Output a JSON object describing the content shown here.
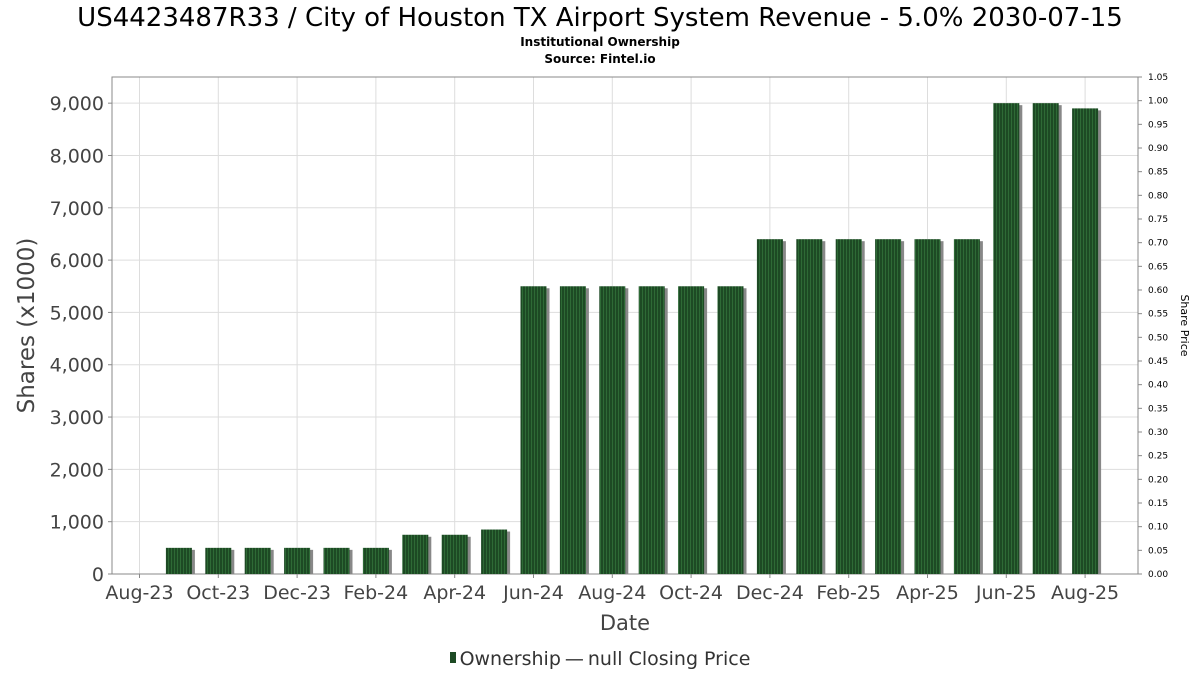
{
  "header": {
    "title": "US4423487R33 / City of Houston TX Airport System Revenue - 5.0% 2030-07-15",
    "subtitle_1": "Institutional Ownership",
    "subtitle_2": "Source: Fintel.io"
  },
  "legend": {
    "ownership_label": "Ownership",
    "separator": "—",
    "price_label": "null Closing Price"
  },
  "chart_data": {
    "type": "bar",
    "title": "US4423487R33 / City of Houston TX Airport System Revenue - 5.0% 2030-07-15",
    "xlabel": "Date",
    "ylabel": "Shares (x1000)",
    "y2label": "Share Price",
    "ylim": [
      0,
      9500
    ],
    "y2lim": [
      0,
      1.05
    ],
    "grid": true,
    "legend_position": "bottom",
    "yticks": [
      "0",
      "1,000",
      "2,000",
      "3,000",
      "4,000",
      "5,000",
      "6,000",
      "7,000",
      "8,000",
      "9,000"
    ],
    "y2ticks": [
      "0.00",
      "0.05",
      "0.10",
      "0.15",
      "0.20",
      "0.25",
      "0.30",
      "0.35",
      "0.40",
      "0.45",
      "0.50",
      "0.55",
      "0.60",
      "0.65",
      "0.70",
      "0.75",
      "0.80",
      "0.85",
      "0.90",
      "0.95",
      "1.00",
      "1.05"
    ],
    "xticks": [
      "Aug-23",
      "Oct-23",
      "Dec-23",
      "Feb-24",
      "Apr-24",
      "Jun-24",
      "Aug-24",
      "Oct-24",
      "Dec-24",
      "Feb-25",
      "Apr-25",
      "Jun-25",
      "Aug-25"
    ],
    "bar_color": "#1d4a24",
    "series": [
      {
        "name": "Ownership",
        "values": [
          500,
          500,
          500,
          500,
          500,
          500,
          750,
          750,
          850,
          5500,
          5500,
          5500,
          5500,
          5500,
          5500,
          6400,
          6400,
          6400,
          6400,
          6400,
          6400,
          9000,
          9000,
          8900
        ]
      }
    ]
  }
}
